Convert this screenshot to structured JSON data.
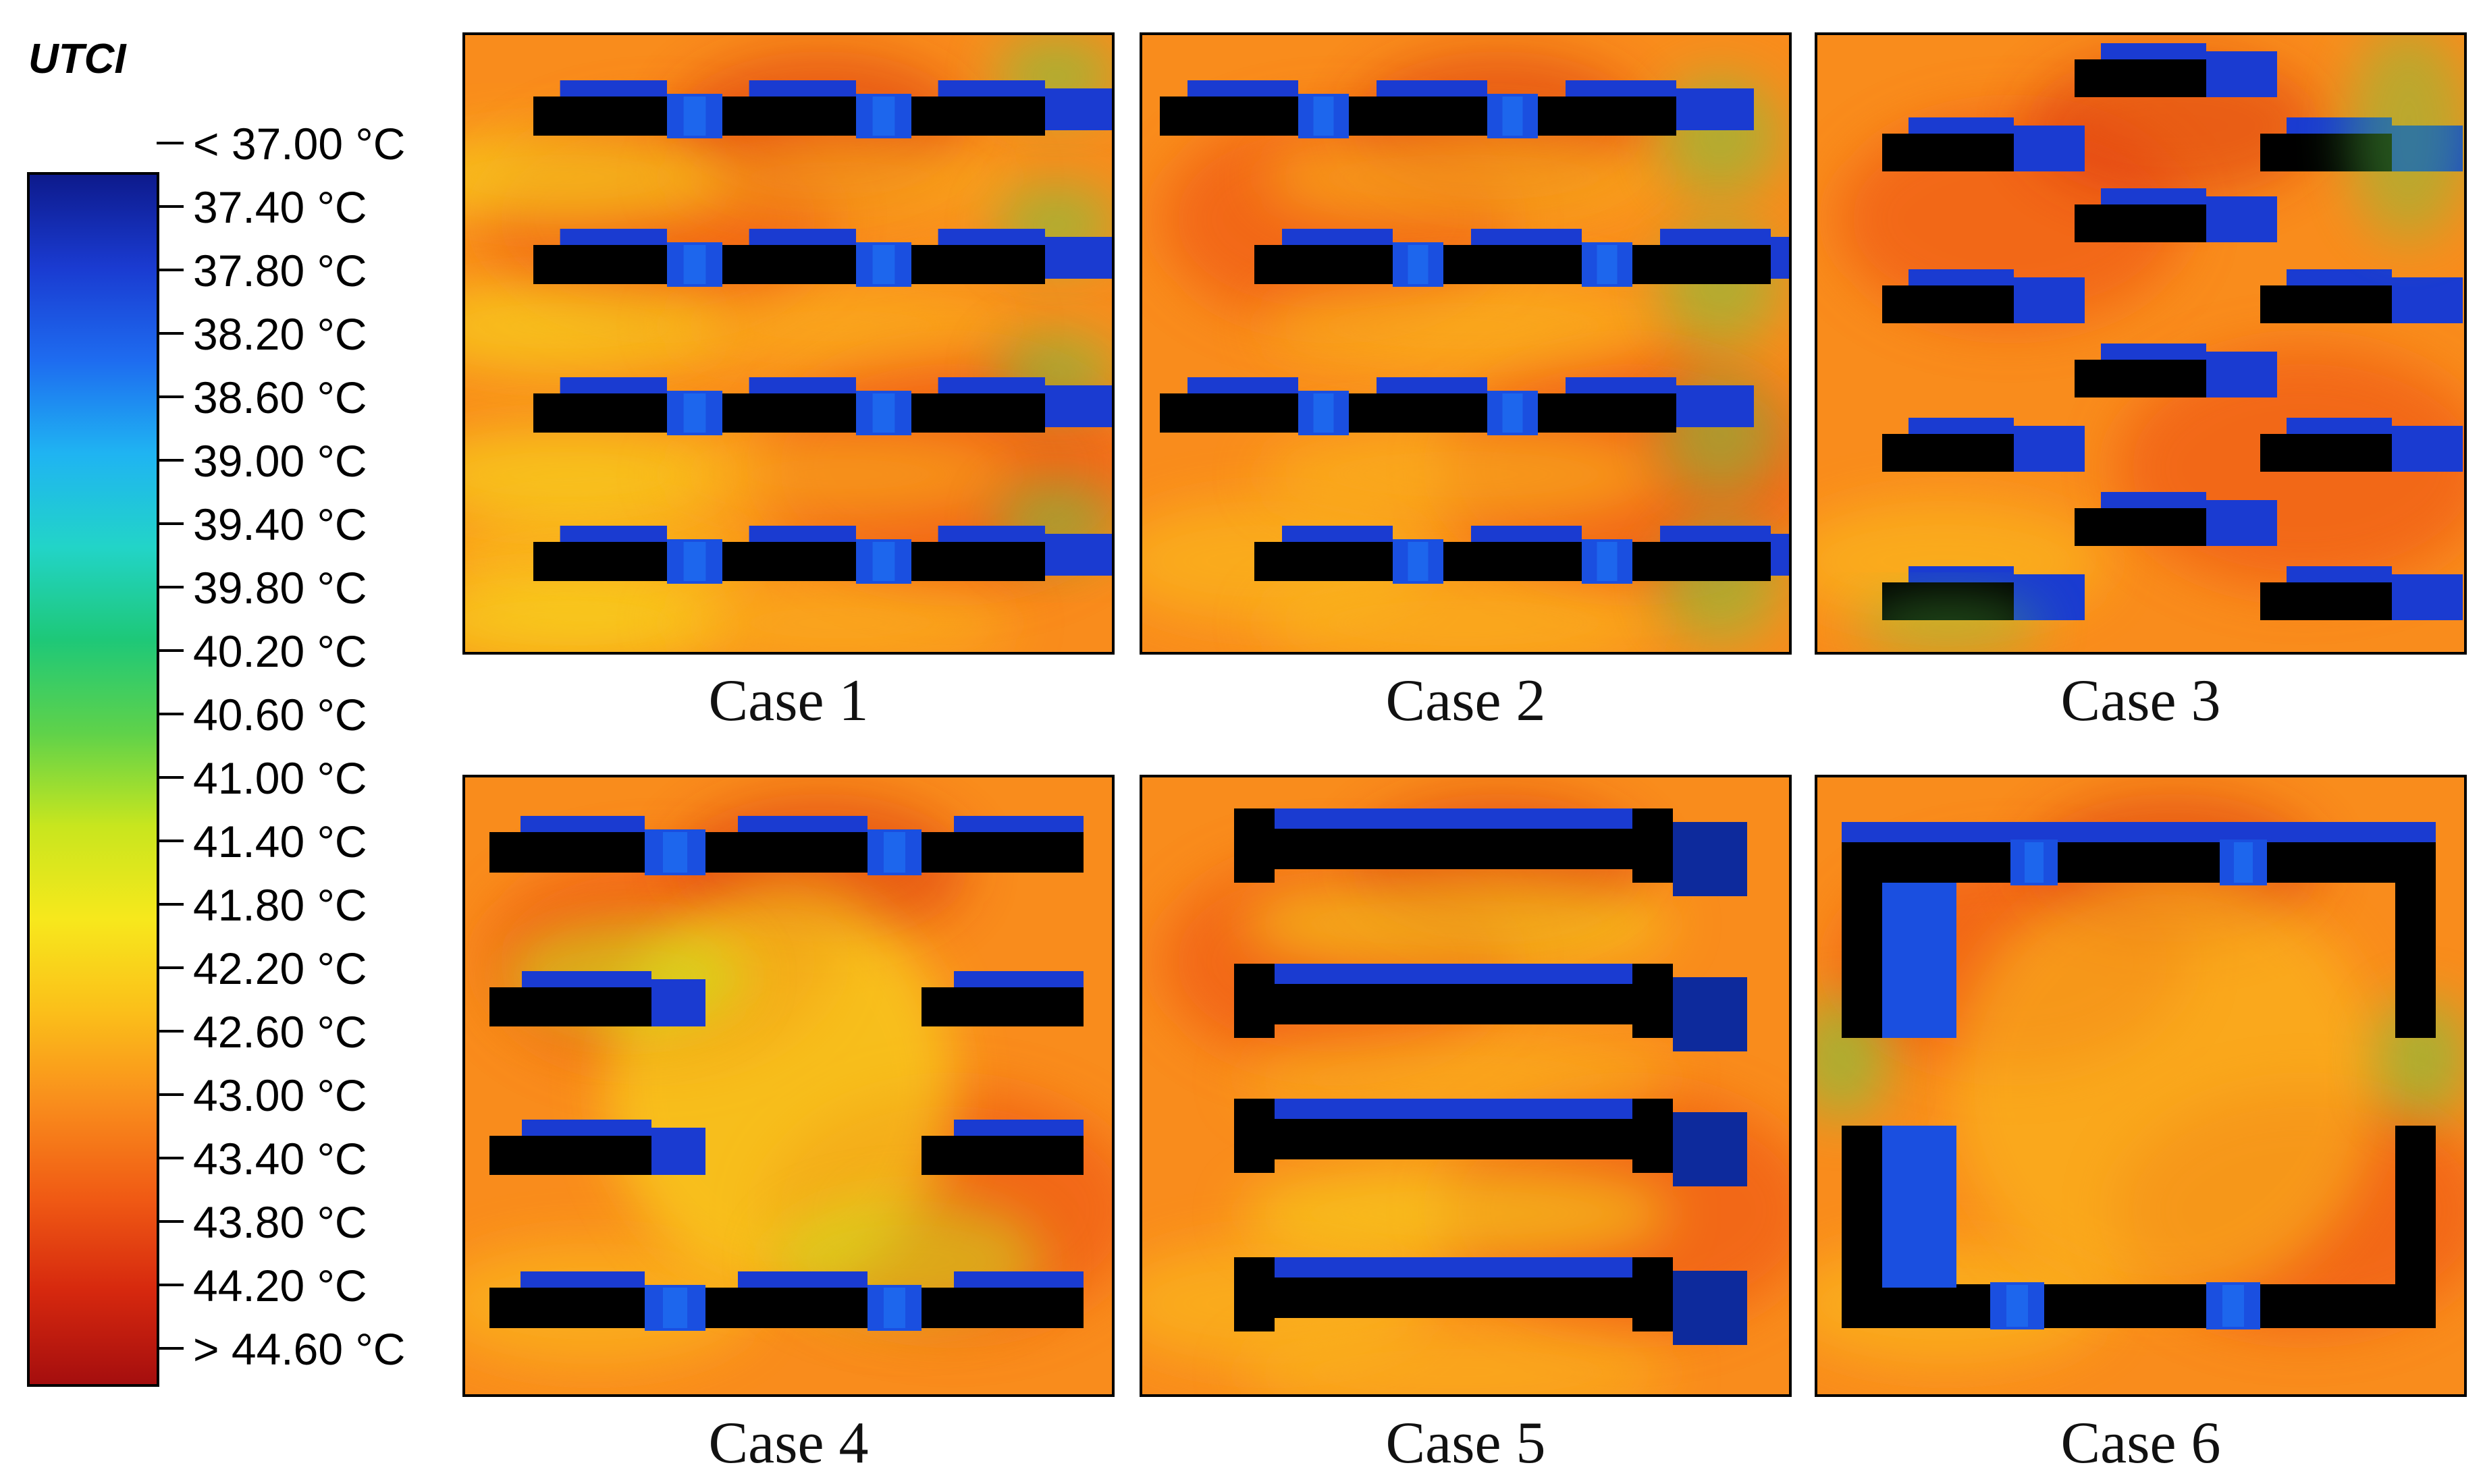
{
  "chart_data": {
    "type": "heatmap",
    "legend_title": "UTCI",
    "unit": "°C",
    "scale": {
      "labels": [
        "< 37.00 °C",
        "37.40 °C",
        "37.80 °C",
        "38.20 °C",
        "38.60 °C",
        "39.00 °C",
        "39.40 °C",
        "39.80 °C",
        "40.20 °C",
        "40.60 °C",
        "41.00 °C",
        "41.40 °C",
        "41.80 °C",
        "42.20 °C",
        "42.60 °C",
        "43.00 °C",
        "43.40 °C",
        "43.80 °C",
        "44.20 °C",
        "> 44.60 °C"
      ],
      "range": [
        37.0,
        44.6
      ],
      "colors": [
        "#0d1a8c",
        "#1a3bd1",
        "#1e6cf0",
        "#1fb4f2",
        "#22d4c8",
        "#1ec878",
        "#5fd24a",
        "#c8e61e",
        "#f7e81c",
        "#fbbf1a",
        "#f98c1c",
        "#f05a14",
        "#d6280e",
        "#a50e0e"
      ]
    },
    "panels": [
      {
        "name": "Case 1",
        "layout": "three buildings per row, four parallel rows, aligned",
        "mean_tone": "orange-red",
        "buildings_color": "#000000",
        "shade_color": "#1a3bd1"
      },
      {
        "name": "Case 2",
        "layout": "four parallel rows, alternating offset rows",
        "mean_tone": "orange-red",
        "buildings_color": "#000000",
        "shade_color": "#1a3bd1"
      },
      {
        "name": "Case 3",
        "layout": "staggered checkerboard of short blocks",
        "mean_tone": "orange-red",
        "buildings_color": "#000000",
        "shade_color": "#1a3bd1"
      },
      {
        "name": "Case 4",
        "layout": "perimeter rows with open central courtyard",
        "mean_tone": "orange-yellow",
        "buildings_color": "#000000",
        "shade_color": "#1a3bd1"
      },
      {
        "name": "Case 5",
        "layout": "U-shaped blocks, four rows",
        "mean_tone": "orange-red",
        "buildings_color": "#000000",
        "shade_color": "#1a3bd1"
      },
      {
        "name": "Case 6",
        "layout": "large enclosed courtyard (two C-shaped wings)",
        "mean_tone": "orange-yellow",
        "buildings_color": "#000000",
        "shade_color": "#1a3bd1"
      }
    ]
  }
}
